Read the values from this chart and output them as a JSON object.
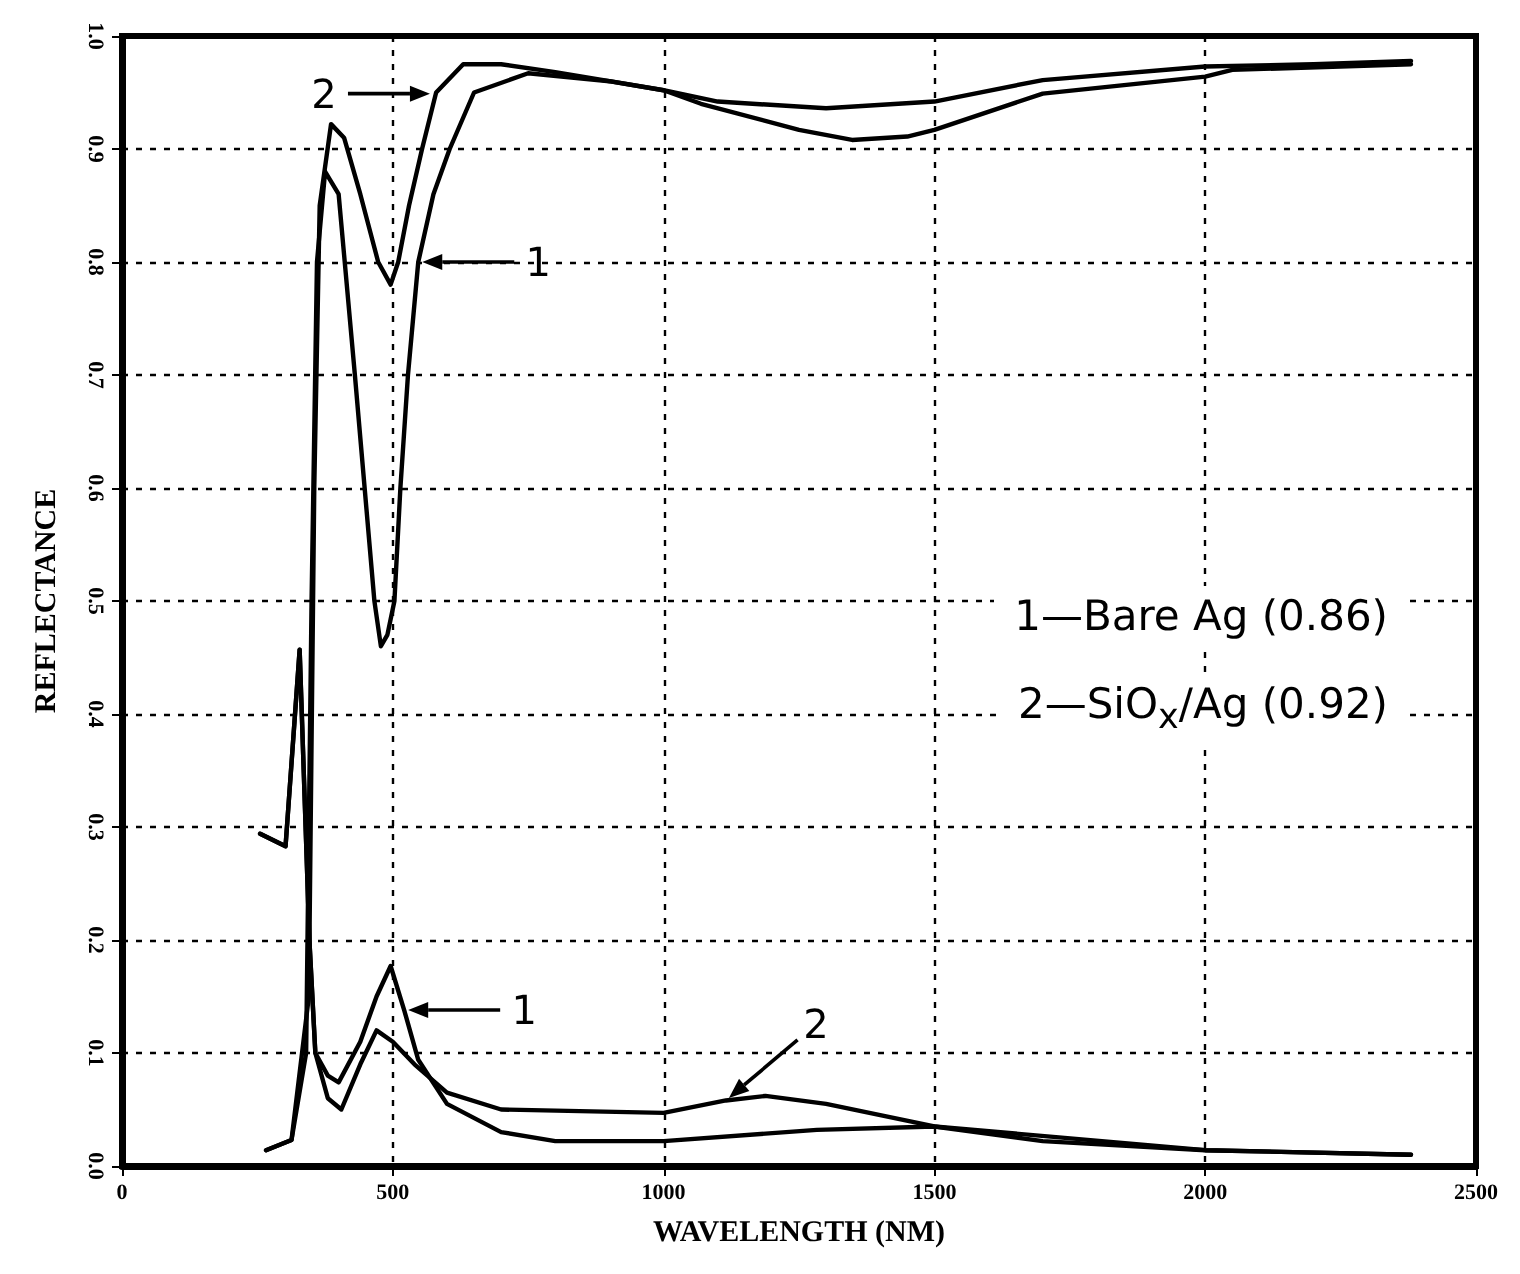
{
  "chart_data": {
    "type": "line",
    "xlabel": "WAVELENGTH (NM)",
    "ylabel": "REFLECTANCE",
    "xlim": [
      0,
      2500
    ],
    "xticks": [
      0,
      500,
      1000,
      1500,
      2000,
      2500
    ],
    "ylim": [
      0,
      1
    ],
    "yticks": [
      {
        "value": 0,
        "label": "0.0"
      },
      {
        "value": 0.1,
        "label": "0.1"
      },
      {
        "value": 0.2,
        "label": "0.2"
      },
      {
        "value": 0.3,
        "label": "0.3"
      },
      {
        "value": 0.4,
        "label": "0.4"
      },
      {
        "value": 0.5,
        "label": "0.5"
      },
      {
        "value": 0.6,
        "label": "0.6"
      },
      {
        "value": 0.7,
        "label": "0.7"
      },
      {
        "value": 0.8,
        "label": "0.8"
      },
      {
        "value": 0.9,
        "label": "0.9"
      },
      {
        "value": 1,
        "label": "1.0"
      }
    ],
    "grid": true,
    "marker": "none",
    "line_style": "solid",
    "series": [
      {
        "color": "#000000",
        "x": [
          266,
          313,
          340,
          350,
          360,
          375,
          400,
          430,
          448,
          466,
          478,
          490,
          503,
          514,
          528,
          547,
          575,
          605,
          650,
          750,
          900,
          1000,
          1100,
          1300,
          1500,
          1700,
          2000,
          2200,
          2380
        ],
        "values": [
          0.014,
          0.023,
          0.1,
          0.5,
          0.8,
          0.88,
          0.86,
          0.7,
          0.6,
          0.5,
          0.46,
          0.47,
          0.5,
          0.6,
          0.7,
          0.8,
          0.86,
          0.9,
          0.95,
          0.967,
          0.96,
          0.952,
          0.942,
          0.936,
          0.942,
          0.961,
          0.973,
          0.975,
          0.978
        ]
      },
      {
        "color": "#000000",
        "x": [
          266,
          313,
          345,
          355,
          365,
          386,
          410,
          440,
          473,
          496,
          510,
          530,
          554,
          580,
          630,
          700,
          800,
          1000,
          1069,
          1250,
          1348,
          1450,
          1500,
          1700,
          2000,
          2050,
          2380
        ],
        "values": [
          0.014,
          0.023,
          0.15,
          0.6,
          0.85,
          0.922,
          0.91,
          0.86,
          0.8,
          0.78,
          0.8,
          0.85,
          0.9,
          0.95,
          0.975,
          0.975,
          0.968,
          0.952,
          0.94,
          0.917,
          0.908,
          0.911,
          0.917,
          0.949,
          0.964,
          0.97,
          0.975
        ]
      },
      {
        "color": "#000000",
        "x": [
          255,
          302,
          328,
          339,
          346,
          357,
          380,
          400,
          440,
          470,
          496,
          521,
          547,
          600,
          700,
          800,
          1000,
          1283,
          1500,
          2000,
          2380
        ],
        "values": [
          0.294,
          0.283,
          0.457,
          0.3,
          0.2,
          0.1,
          0.08,
          0.074,
          0.11,
          0.15,
          0.177,
          0.138,
          0.094,
          0.055,
          0.03,
          0.022,
          0.022,
          0.032,
          0.035,
          0.014,
          0.01
        ]
      },
      {
        "color": "#000000",
        "x": [
          255,
          302,
          328,
          339,
          346,
          357,
          380,
          405,
          440,
          470,
          500,
          540,
          600,
          700,
          1000,
          1115,
          1188,
          1300,
          1500,
          1700,
          2000,
          2380
        ],
        "values": [
          0.294,
          0.283,
          0.457,
          0.3,
          0.2,
          0.1,
          0.06,
          0.05,
          0.09,
          0.12,
          0.11,
          0.09,
          0.065,
          0.05,
          0.047,
          0.058,
          0.062,
          0.055,
          0.035,
          0.022,
          0.014,
          0.01
        ]
      }
    ],
    "annotations": [
      {
        "text": "2",
        "x": 576,
        "y": 0.949
      },
      {
        "text": "1",
        "x": 547,
        "y": 0.8
      },
      {
        "text": "1",
        "x": 521,
        "y": 0.138
      },
      {
        "text": "2",
        "x": 1115,
        "y": 0.058
      },
      "1—Bare Ag (0.86)",
      "2—SiO$_{x}$/Ag (0.92)"
    ]
  }
}
